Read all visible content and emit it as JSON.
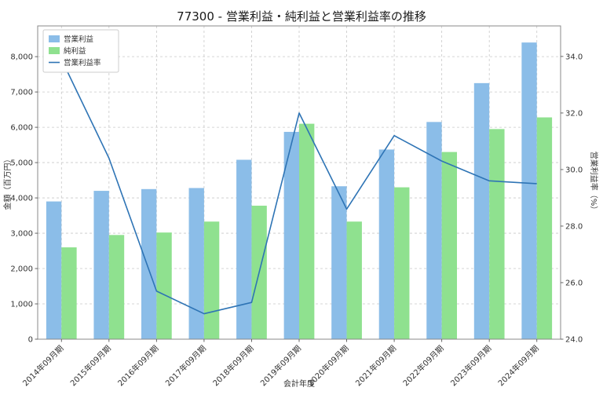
{
  "title": "77300 - 営業利益・純利益と営業利益率の推移",
  "chart_data": {
    "type": "bar",
    "categories": [
      "2014年09月期",
      "2015年09月期",
      "2016年09月期",
      "2017年09月期",
      "2018年09月期",
      "2019年09月期",
      "2020年09月期",
      "2021年09月期",
      "2022年09月期",
      "2023年09月期",
      "2024年09月期"
    ],
    "series": [
      {
        "name": "営業利益",
        "type": "bar",
        "axis": "left",
        "color": "#8BBDE8",
        "values": [
          3900,
          4200,
          4250,
          4280,
          5080,
          5870,
          4330,
          5370,
          6150,
          7250,
          8400
        ]
      },
      {
        "name": "純利益",
        "type": "bar",
        "axis": "left",
        "color": "#8FE18F",
        "values": [
          2600,
          2950,
          3020,
          3330,
          3780,
          6100,
          3330,
          4300,
          5300,
          5950,
          6280
        ]
      },
      {
        "name": "営業利益率",
        "type": "line",
        "axis": "right",
        "color": "#2E74B5",
        "values": [
          33.9,
          30.4,
          25.7,
          24.9,
          25.3,
          32.0,
          28.6,
          31.2,
          30.3,
          29.6,
          29.5
        ]
      }
    ],
    "xlabel": "会計年度",
    "ylabel_left": "金額（百万円）",
    "ylabel_right": "営業利益率（%）",
    "ylim_left": [
      0,
      8870
    ],
    "ylim_right": [
      24,
      35.08
    ],
    "yticks_left": [
      {
        "v": 0,
        "label": "0"
      },
      {
        "v": 1000,
        "label": "1,000"
      },
      {
        "v": 2000,
        "label": "2,000"
      },
      {
        "v": 3000,
        "label": "3,000"
      },
      {
        "v": 4000,
        "label": "4,000"
      },
      {
        "v": 5000,
        "label": "5,000"
      },
      {
        "v": 6000,
        "label": "6,000"
      },
      {
        "v": 7000,
        "label": "7,000"
      },
      {
        "v": 8000,
        "label": "8,000"
      }
    ],
    "yticks_right": [
      {
        "v": 24,
        "label": "24.0"
      },
      {
        "v": 26,
        "label": "26.0"
      },
      {
        "v": 28,
        "label": "28.0"
      },
      {
        "v": 30,
        "label": "30.0"
      },
      {
        "v": 32,
        "label": "32.0"
      },
      {
        "v": 34,
        "label": "34.0"
      }
    ],
    "grid": true,
    "legend_position": "upper left"
  },
  "colors": {
    "grid": "#c8c8c8",
    "axis": "#8a8a8a",
    "text": "#333333",
    "legend_border": "#cccccc",
    "background": "#ffffff"
  }
}
